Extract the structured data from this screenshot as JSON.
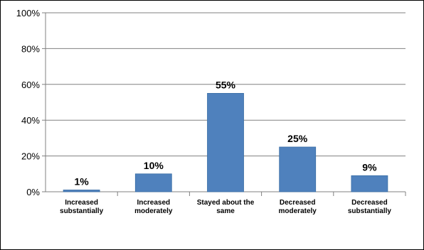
{
  "chart_data": {
    "type": "bar",
    "categories": [
      [
        "Increased",
        "substantially"
      ],
      [
        "Increased",
        "moderately"
      ],
      [
        "Stayed about the",
        "same"
      ],
      [
        "Decreased",
        "moderately"
      ],
      [
        "Decreased",
        "substantially"
      ]
    ],
    "values": [
      1,
      10,
      55,
      25,
      9
    ],
    "data_labels": [
      "1%",
      "10%",
      "55%",
      "25%",
      "9%"
    ],
    "y_ticks": [
      "0%",
      "20%",
      "40%",
      "60%",
      "80%",
      "100%"
    ],
    "ylim": [
      0,
      100
    ],
    "grid": true,
    "colors": {
      "bar": "#4f81bd",
      "bar_edge": "#3a6ea5",
      "grid": "#808080"
    }
  }
}
